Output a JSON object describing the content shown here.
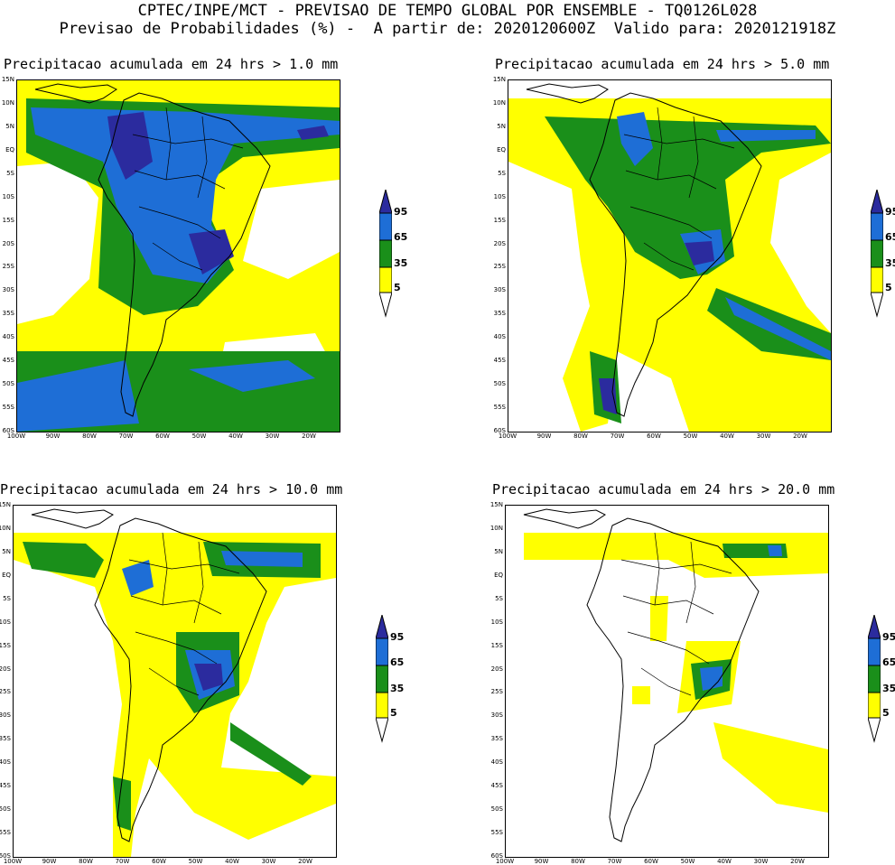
{
  "header": {
    "line1": "CPTEC/INPE/MCT - PREVISAO DE TEMPO GLOBAL POR ENSEMBLE - TQ0126L028",
    "line2": "Previsao de Probabilidades (%) -  A partir de: 2020120600Z  Valido para: 2020121918Z"
  },
  "panels": [
    {
      "title": "Precipitacao acumulada em 24 hrs > 1.0 mm"
    },
    {
      "title": "Precipitacao acumulada em 24 hrs > 5.0 mm"
    },
    {
      "title": "Precipitacao acumulada em 24 hrs > 10.0 mm"
    },
    {
      "title": "Precipitacao acumulada em 24 hrs > 20.0 mm"
    }
  ],
  "lat_labels": [
    "15N",
    "10N",
    "5N",
    "EQ",
    "5S",
    "10S",
    "15S",
    "20S",
    "25S",
    "30S",
    "35S",
    "40S",
    "45S",
    "50S",
    "55S",
    "60S"
  ],
  "lon_labels": [
    "100W",
    "90W",
    "80W",
    "70W",
    "60W",
    "50W",
    "40W",
    "30W",
    "20W"
  ],
  "colorbar": {
    "ticks": [
      "95",
      "65",
      "35",
      "5"
    ],
    "colors": {
      "c95": "#2b2b9e",
      "c65": "#1e6ed6",
      "c35": "#1a8f1a",
      "c5": "#ffff00",
      "c0": "#ffffff"
    }
  }
}
